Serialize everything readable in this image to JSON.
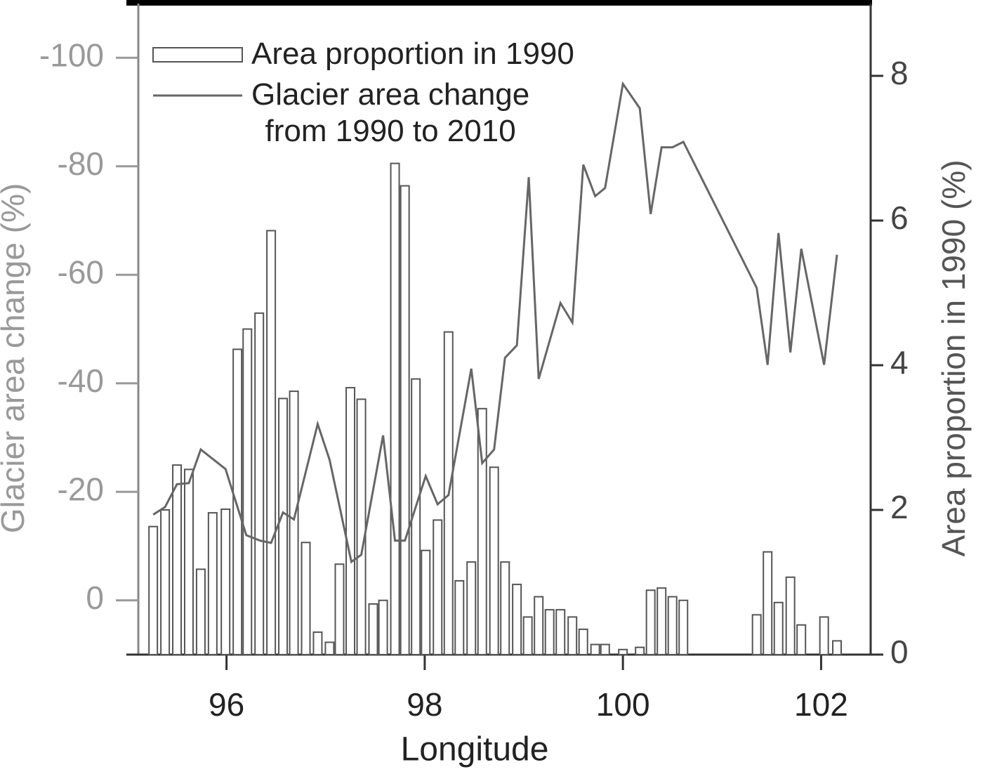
{
  "chart_data": {
    "type": "combo",
    "x_label": "Longitude",
    "y_label": "Glacier area change (%)",
    "y2_label": "Area proportion in 1990 (%)",
    "xlim": [
      95.11,
      102.5
    ],
    "xticks": [
      96,
      98,
      100,
      102
    ],
    "ylim": [
      10,
      -110
    ],
    "yticks": [
      -100,
      -80,
      -60,
      -40,
      -20,
      0
    ],
    "y2lim": [
      0,
      9
    ],
    "y2ticks": [
      0,
      2,
      4,
      6,
      8
    ],
    "legend": "upper-left",
    "series": [
      {
        "name": "Area proportion in 1990",
        "type": "bar",
        "axis": "y2",
        "color": "#555555",
        "x": [
          95.26,
          95.38,
          95.5,
          95.62,
          95.74,
          95.86,
          95.99,
          96.11,
          96.21,
          96.33,
          96.45,
          96.57,
          96.68,
          96.8,
          96.92,
          97.04,
          97.14,
          97.25,
          97.36,
          97.48,
          97.58,
          97.7,
          97.8,
          97.91,
          98.01,
          98.13,
          98.24,
          98.35,
          98.47,
          98.58,
          98.7,
          98.81,
          98.93,
          99.04,
          99.15,
          99.26,
          99.37,
          99.49,
          99.6,
          99.72,
          99.82,
          100.0,
          100.17,
          100.28,
          100.39,
          100.5,
          100.61,
          101.35,
          101.46,
          101.57,
          101.69,
          101.8,
          102.03,
          102.16
        ],
        "values": [
          1.77,
          2.0,
          2.62,
          2.56,
          1.18,
          1.96,
          2.01,
          4.22,
          4.5,
          4.72,
          5.86,
          3.54,
          3.64,
          1.55,
          0.31,
          0.17,
          1.25,
          3.69,
          3.53,
          0.7,
          0.75,
          6.79,
          6.48,
          3.81,
          1.44,
          1.86,
          4.46,
          1.02,
          1.28,
          3.4,
          2.59,
          1.28,
          0.97,
          0.52,
          0.8,
          0.62,
          0.62,
          0.52,
          0.35,
          0.14,
          0.14,
          0.07,
          0.1,
          0.89,
          0.92,
          0.8,
          0.75,
          0.55,
          1.42,
          0.72,
          1.07,
          0.41,
          0.52,
          0.19
        ]
      },
      {
        "name": "Glacier area change\nfrom 1990 to 2010",
        "type": "line",
        "axis": "y",
        "color": "#666666",
        "x": [
          95.26,
          95.38,
          95.5,
          95.62,
          95.74,
          95.99,
          96.2,
          96.34,
          96.45,
          96.57,
          96.68,
          96.92,
          97.04,
          97.26,
          97.36,
          97.58,
          97.7,
          97.8,
          98.01,
          98.13,
          98.24,
          98.47,
          98.58,
          98.7,
          98.81,
          98.93,
          99.05,
          99.15,
          99.37,
          99.49,
          99.6,
          99.72,
          99.82,
          100.0,
          100.17,
          100.28,
          100.39,
          100.5,
          100.61,
          101.35,
          101.46,
          101.57,
          101.69,
          101.8,
          102.03,
          102.16
        ],
        "values": [
          -15.8,
          -17.2,
          -21.4,
          -21.6,
          -27.8,
          -24.2,
          -12.0,
          -11.0,
          -10.6,
          -16.2,
          -14.9,
          -32.5,
          -25.9,
          -7.1,
          -8.4,
          -30.4,
          -11.0,
          -11.0,
          -22.9,
          -17.7,
          -19.4,
          -42.7,
          -25.3,
          -27.8,
          -44.7,
          -47.0,
          -78.0,
          -40.8,
          -54.8,
          -51.2,
          -80.3,
          -74.5,
          -76.0,
          -95.2,
          -90.7,
          -71.2,
          -83.5,
          -83.5,
          -84.5,
          -57.6,
          -43.4,
          -67.7,
          -45.7,
          -64.8,
          -43.4,
          -63.7
        ]
      }
    ]
  }
}
